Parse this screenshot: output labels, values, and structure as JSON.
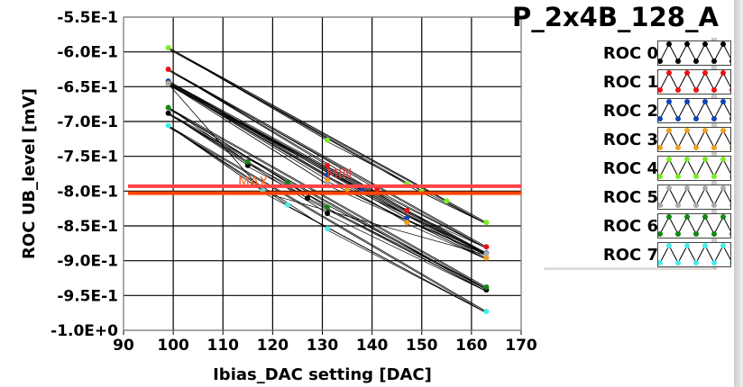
{
  "chart_data": {
    "type": "line",
    "title": "P_2x4B_128_A",
    "xlabel": "Ibias_DAC setting [DAC]",
    "ylabel": "ROC UB_level [mV]",
    "xlim": [
      90,
      170
    ],
    "ylim": [
      -1.0,
      -0.55
    ],
    "xticks": [
      "90",
      "100",
      "110",
      "120",
      "130",
      "140",
      "150",
      "160",
      "170"
    ],
    "xtick_values": [
      90,
      100,
      110,
      120,
      130,
      140,
      150,
      160,
      170
    ],
    "yticks": [
      "-5.5E-1",
      "-6.0E-1",
      "-6.5E-1",
      "-7.0E-1",
      "-7.5E-1",
      "-8.0E-1",
      "-8.5E-1",
      "-9.0E-1",
      "-9.5E-1",
      "-1.0E+0"
    ],
    "ytick_values": [
      -0.55,
      -0.6,
      -0.65,
      -0.7,
      -0.75,
      -0.8,
      -0.85,
      -0.9,
      -0.95,
      -1.0
    ],
    "grid": true,
    "legend_position": "right",
    "thresholds": [
      {
        "label": "MIN",
        "value": -0.793,
        "color": "#ff4444"
      },
      {
        "label": "MAX",
        "value": -0.803,
        "color": "#ff4400"
      }
    ],
    "series": [
      {
        "name": "ROC 0",
        "color": "#000000",
        "x": [
          99,
          115,
          127,
          131,
          163
        ],
        "y": [
          -0.688,
          -0.763,
          -0.81,
          -0.832,
          -0.942
        ]
      },
      {
        "name": "ROC 1",
        "color": "#ee1111",
        "x": [
          99,
          131,
          141,
          147,
          163
        ],
        "y": [
          -0.625,
          -0.763,
          -0.797,
          -0.828,
          -0.88
        ]
      },
      {
        "name": "ROC 2",
        "color": "#1144bb",
        "x": [
          99,
          131,
          138,
          147,
          163
        ],
        "y": [
          -0.642,
          -0.777,
          -0.799,
          -0.839,
          -0.889
        ]
      },
      {
        "name": "ROC 3",
        "color": "#f0a020",
        "x": [
          99,
          131,
          135,
          147,
          163
        ],
        "y": [
          -0.645,
          -0.784,
          -0.797,
          -0.845,
          -0.896
        ]
      },
      {
        "name": "ROC 4",
        "color": "#77ee22",
        "x": [
          99,
          131,
          147,
          150,
          155,
          163
        ],
        "y": [
          -0.594,
          -0.727,
          -0.79,
          -0.8,
          -0.814,
          -0.845
        ]
      },
      {
        "name": "ROC 5",
        "color": "#aaaaaa",
        "x": [
          99,
          118,
          131,
          163
        ],
        "y": [
          -0.646,
          -0.8,
          -0.79,
          -0.89
        ]
      },
      {
        "name": "ROC 6",
        "color": "#118811",
        "x": [
          99,
          115,
          123,
          131,
          163
        ],
        "y": [
          -0.68,
          -0.758,
          -0.788,
          -0.823,
          -0.938
        ]
      },
      {
        "name": "ROC 7",
        "color": "#44eeee",
        "x": [
          99,
          118,
          123,
          131,
          163
        ],
        "y": [
          -0.706,
          -0.8,
          -0.82,
          -0.854,
          -0.973
        ]
      }
    ]
  }
}
